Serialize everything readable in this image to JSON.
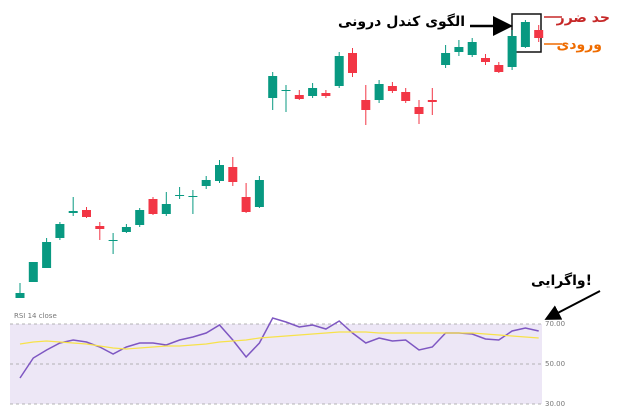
{
  "chart_data": [
    {
      "type": "candlestick",
      "ylim": [
        0,
        300
      ],
      "up_color": "#089981",
      "down_color": "#f23645",
      "open": [
        2,
        18,
        32,
        62,
        87,
        90,
        74,
        60,
        68,
        75,
        101,
        86,
        105,
        104,
        114,
        119,
        133,
        103,
        93,
        202,
        210,
        205,
        204,
        207,
        214,
        247,
        200,
        200,
        214,
        208,
        193,
        200,
        235,
        248,
        245,
        242,
        235,
        233,
        253,
        270
      ],
      "high": [
        17,
        38,
        62,
        78,
        103,
        93,
        78,
        67,
        76,
        92,
        103,
        108,
        113,
        110,
        124,
        140,
        143,
        117,
        124,
        228,
        215,
        210,
        217,
        210,
        248,
        252,
        215,
        220,
        218,
        212,
        200,
        212,
        255,
        260,
        262,
        246,
        238,
        270,
        280,
        275
      ],
      "low": [
        2,
        18,
        32,
        60,
        84,
        82,
        60,
        46,
        67,
        73,
        85,
        84,
        101,
        86,
        111,
        117,
        114,
        87,
        92,
        190,
        188,
        200,
        202,
        202,
        212,
        223,
        175,
        197,
        207,
        197,
        176,
        185,
        232,
        244,
        243,
        235,
        227,
        230,
        252,
        258
      ],
      "close": [
        7,
        38,
        58,
        76,
        89,
        83,
        71,
        60,
        73,
        90,
        86,
        96,
        105,
        104,
        120,
        135,
        118,
        88,
        120,
        224,
        210,
        201,
        212,
        204,
        244,
        227,
        190,
        216,
        209,
        199,
        186,
        198,
        247,
        253,
        258,
        238,
        228,
        264,
        278,
        262
      ],
      "pattern_label": "الگوی کندل درونی",
      "stop_label": "حد ضرر",
      "stop_color": "#c62828",
      "entry_label": "ورودی",
      "entry_color": "#ef6c00",
      "divergence_label": "واگرایی!"
    },
    {
      "type": "line",
      "title": "RSI 14 close",
      "ylim": [
        30,
        70
      ],
      "yticks": [
        {
          "value": 70,
          "label": "70.00"
        },
        {
          "value": 50,
          "label": "50.00"
        },
        {
          "value": 30,
          "label": "30.00"
        }
      ],
      "band_color": "#ede7f6",
      "series": [
        {
          "color": "#7e57c2",
          "values": [
            43,
            53,
            57,
            60.5,
            62,
            61,
            58.5,
            55,
            58.5,
            60.5,
            60.5,
            59.5,
            62,
            63.5,
            65.5,
            69.5,
            62,
            53.5,
            60.5,
            73,
            71,
            68.5,
            69.5,
            67.5,
            71.5,
            65.5,
            60.5,
            63,
            61.5,
            62,
            57,
            58.5,
            65.5,
            65.5,
            65,
            62.5,
            62,
            66.5,
            68,
            66.5
          ]
        },
        {
          "color": "#f7e24a",
          "values": [
            60,
            61,
            61.5,
            61,
            60.5,
            60,
            59,
            58,
            57.5,
            58,
            58.5,
            59,
            59,
            59.5,
            60,
            61,
            61.5,
            62,
            63,
            63.5,
            64,
            64.5,
            65,
            65.5,
            66,
            66,
            66,
            65.5,
            65.5,
            65.5,
            65.5,
            65.5,
            65.5,
            65.5,
            65.5,
            65,
            64.5,
            64,
            63.5,
            63
          ]
        }
      ]
    }
  ]
}
